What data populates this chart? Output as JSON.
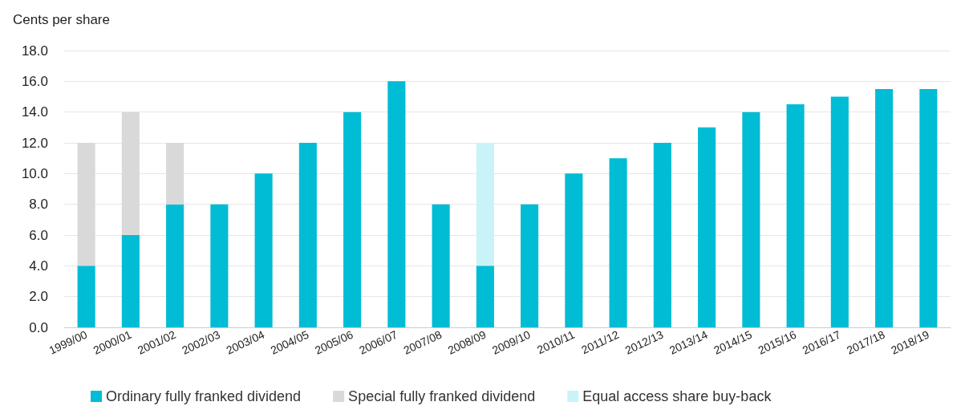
{
  "chart_data": {
    "type": "bar",
    "stacked": true,
    "ylabel": "Cents per share",
    "categories": [
      "1999/00",
      "2000/01",
      "2001/02",
      "2002/03",
      "2003/04",
      "2004/05",
      "2005/06",
      "2006/07",
      "2007/08",
      "2008/09",
      "2009/10",
      "2010/11",
      "2011/12",
      "2012/13",
      "2013/14",
      "2014/15",
      "2015/16",
      "2016/17",
      "2017/18",
      "2018/19"
    ],
    "series": [
      {
        "name": "Ordinary fully franked dividend",
        "color": "#00bcd4",
        "values": [
          4,
          6,
          8,
          8,
          10,
          12,
          14,
          16,
          8,
          4,
          8,
          10,
          11,
          12,
          13,
          14,
          14.5,
          15,
          15.5,
          15.5
        ]
      },
      {
        "name": "Special fully franked dividend",
        "color": "#d9d9d9",
        "values": [
          8,
          8,
          4,
          null,
          null,
          null,
          null,
          null,
          null,
          null,
          null,
          null,
          null,
          null,
          null,
          null,
          null,
          null,
          null,
          null
        ]
      },
      {
        "name": "Equal access share buy-back",
        "color": "#c8f4f9",
        "values": [
          null,
          null,
          null,
          null,
          null,
          null,
          null,
          null,
          null,
          8,
          null,
          null,
          null,
          null,
          null,
          null,
          null,
          null,
          null,
          null
        ]
      }
    ],
    "ylim": [
      0,
      18
    ],
    "yticks": [
      {
        "value": 0,
        "label": "0.0"
      },
      {
        "value": 2,
        "label": "2.0"
      },
      {
        "value": 4,
        "label": "4.0"
      },
      {
        "value": 6,
        "label": "6.0"
      },
      {
        "value": 8,
        "label": "8.0"
      },
      {
        "value": 10,
        "label": "10.0"
      },
      {
        "value": 12,
        "label": "12.0"
      },
      {
        "value": 14,
        "label": "14.0"
      },
      {
        "value": 16,
        "label": "16.0"
      },
      {
        "value": 18,
        "label": "18.0"
      }
    ],
    "grid": "y",
    "legend": "bottom"
  }
}
